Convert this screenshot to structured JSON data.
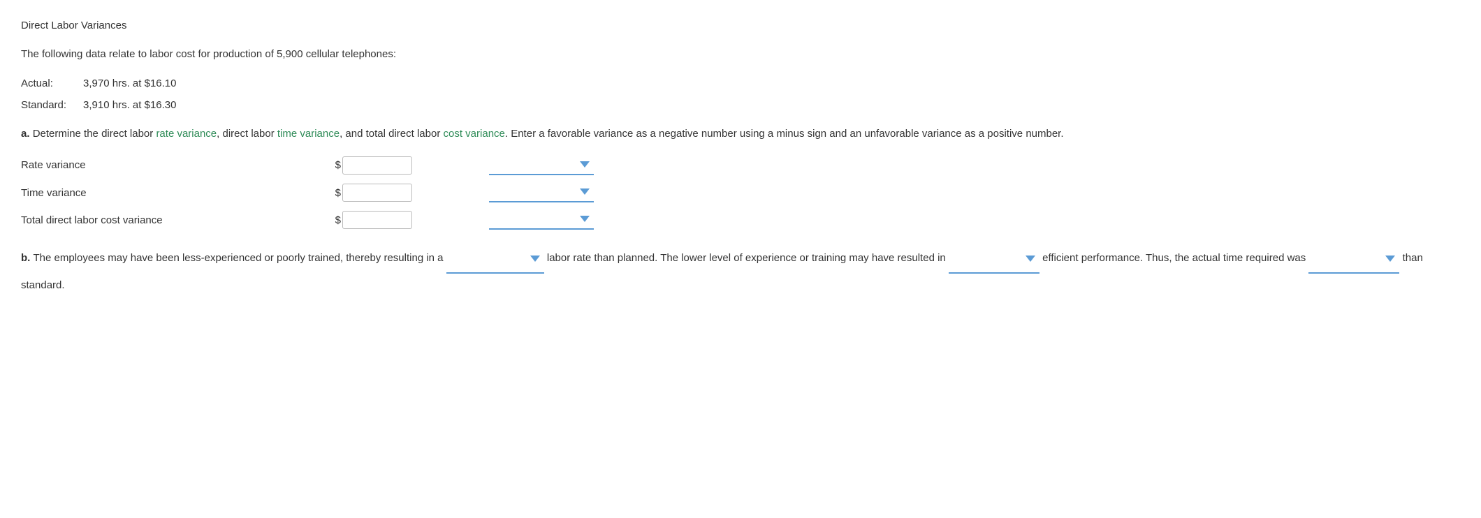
{
  "title": "Direct Labor Variances",
  "intro": "The following data relate to labor cost for production of 5,900 cellular telephones:",
  "data_rows": {
    "actual": {
      "label": "Actual:",
      "value": "3,970 hrs. at $16.10"
    },
    "standard": {
      "label": "Standard:",
      "value": "3,910 hrs. at $16.30"
    }
  },
  "part_a": {
    "prefix": "a.",
    "text_1": "Determine the direct labor ",
    "term_1": "rate variance",
    "text_2": ", direct labor ",
    "term_2": "time variance",
    "text_3": ", and total direct labor ",
    "term_3": "cost variance",
    "text_4": ". Enter a favorable variance as a negative number using a minus sign and an unfavorable variance as a positive number."
  },
  "variance_rows": {
    "rate": {
      "label": "Rate variance",
      "currency": "$",
      "value": ""
    },
    "time": {
      "label": "Time variance",
      "currency": "$",
      "value": ""
    },
    "total": {
      "label": "Total direct labor cost variance",
      "currency": "$",
      "value": ""
    }
  },
  "part_b": {
    "prefix": "b.",
    "seg_1": "The employees may have been less-experienced or poorly trained, thereby resulting in a",
    "seg_2": "labor rate than planned. The lower level of experience or training may have resulted in",
    "seg_3": "efficient performance. Thus, the actual time required was",
    "seg_4": "than standard."
  },
  "colors": {
    "link_color": "#2e8b57",
    "accent_blue": "#5b9bd5",
    "border_gray": "#bbbbbb",
    "text_color": "#333333"
  }
}
